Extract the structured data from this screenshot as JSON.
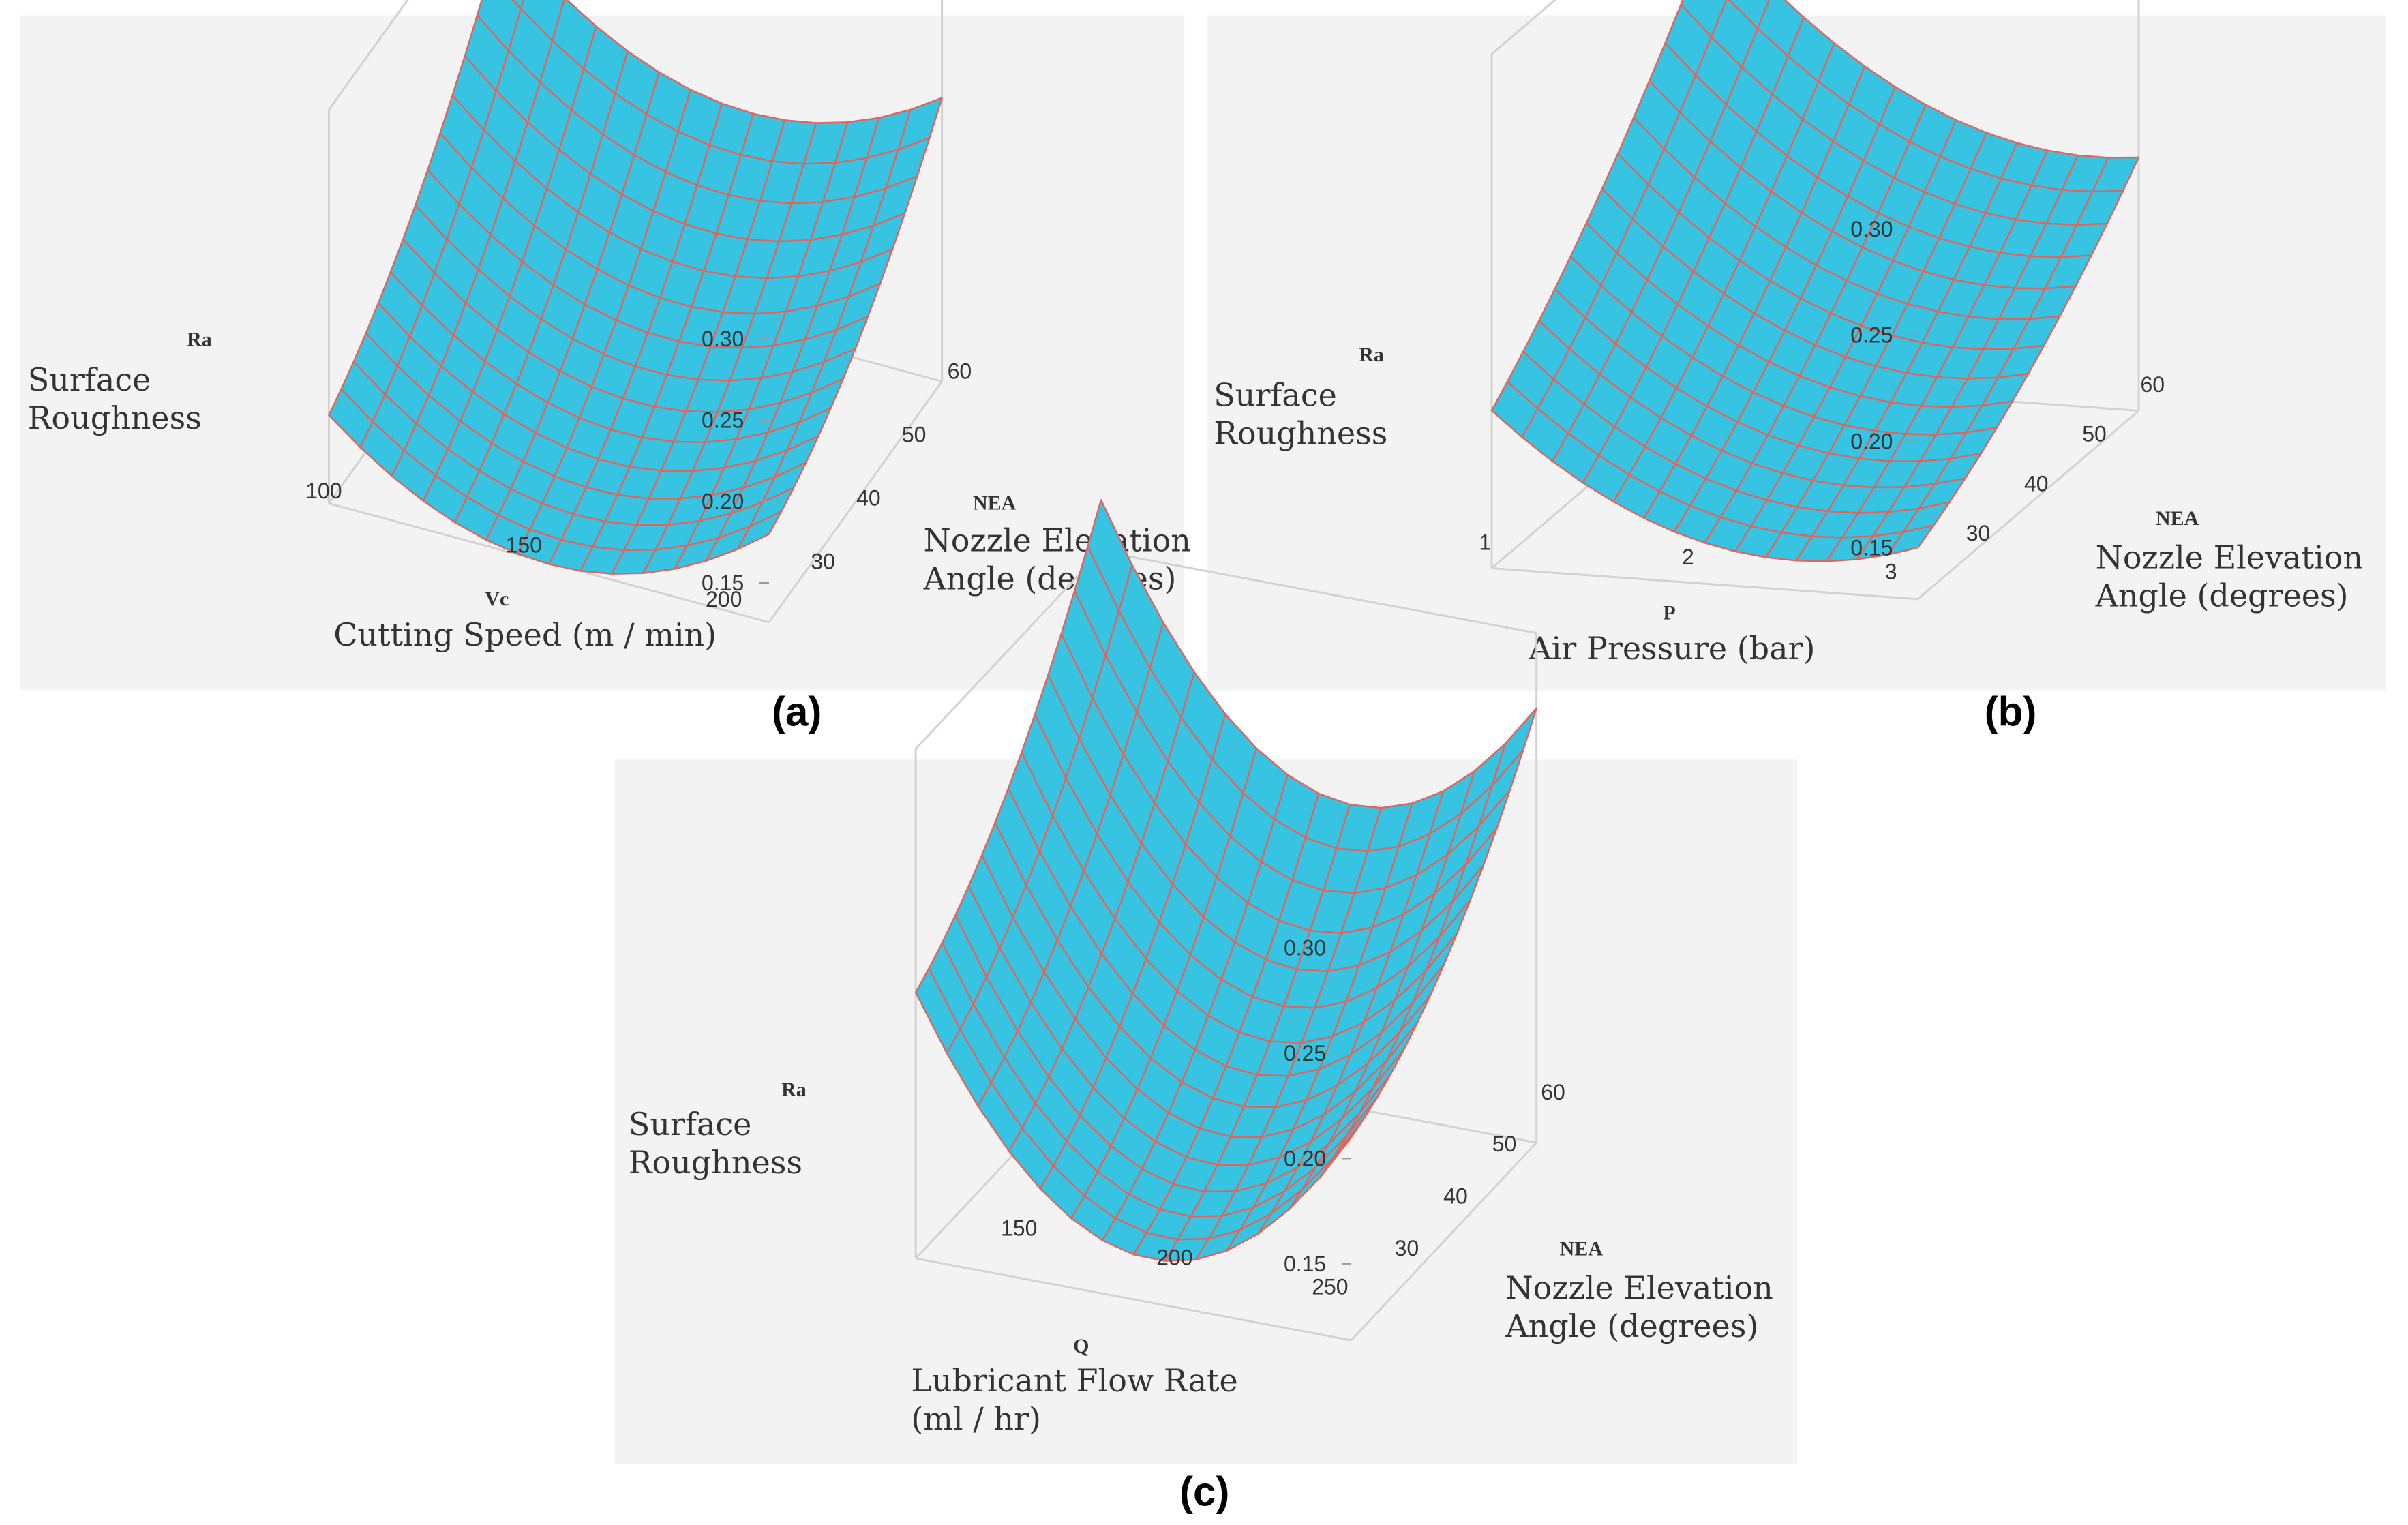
{
  "figure": {
    "panel_background": "#f3f3f3",
    "surface_color": "#36c4e2",
    "mesh_color": "#e2635a",
    "box_color": "#d2d2d2"
  },
  "chart_data": [
    {
      "type": "surface",
      "caption": "(a)",
      "x_symbol": "Vc",
      "x_title": [
        "Cutting Speed (m / min)"
      ],
      "x_ticks": [
        100,
        150,
        200
      ],
      "x_range": [
        100,
        210
      ],
      "y_symbol": "NEA",
      "y_title": [
        "Nozzle Elevation",
        "Angle (degrees)"
      ],
      "y_ticks": [
        30,
        40,
        50,
        60
      ],
      "y_range": [
        25,
        63
      ],
      "z_symbol": "Ra",
      "z_title": [
        "Surface",
        "Roughness"
      ],
      "z_ticks": [
        "0.15",
        "0.20",
        "0.25",
        "0.30"
      ],
      "z_range": [
        0.15,
        0.3
      ],
      "surface_corners": {
        "x_min_y_min": 0.18,
        "x_max_y_min": 0.18,
        "x_min_y_max": 0.33,
        "x_max_y_max": 0.3
      },
      "curvature_x": 0.055,
      "curvature_y": 0.02,
      "grid": true
    },
    {
      "type": "surface",
      "caption": "(b)",
      "x_symbol": "P",
      "x_title": [
        "Air Pressure (bar)"
      ],
      "x_ticks": [
        1,
        2,
        3
      ],
      "x_range": [
        1,
        3.1
      ],
      "y_symbol": "NEA",
      "y_title": [
        "Nozzle Elevation",
        "Angle (degrees)"
      ],
      "y_ticks": [
        30,
        40,
        50,
        60
      ],
      "y_range": [
        25,
        63
      ],
      "z_symbol": "Ra",
      "z_title": [
        "Surface",
        "Roughness"
      ],
      "z_ticks": [
        "0.15",
        "0.20",
        "0.25",
        "0.30"
      ],
      "z_range": [
        0.15,
        0.3
      ],
      "surface_corners": {
        "x_min_y_min": 0.2,
        "x_max_y_min": 0.15,
        "x_min_y_max": 0.34,
        "x_max_y_max": 0.245
      },
      "curvature_x": 0.03,
      "curvature_y": 0.01,
      "grid": true
    },
    {
      "type": "surface",
      "caption": "(c)",
      "x_symbol": "Q",
      "x_title": [
        "Lubricant Flow Rate",
        "(ml / hr)"
      ],
      "x_ticks": [
        150,
        200,
        250
      ],
      "x_range": [
        115,
        255
      ],
      "y_symbol": "NEA",
      "y_title": [
        "Nozzle Elevation",
        "Angle (degrees)"
      ],
      "y_ticks": [
        30,
        40,
        50,
        60
      ],
      "y_range": [
        25,
        63
      ],
      "z_symbol": "Ra",
      "z_title": [
        "Surface",
        "Roughness"
      ],
      "z_ticks": [
        "0.15",
        "0.20",
        "0.25",
        "0.30"
      ],
      "z_range": [
        0.15,
        0.3
      ],
      "surface_corners": {
        "x_min_y_min": 0.24,
        "x_max_y_min": 0.21,
        "x_min_y_max": 0.38,
        "x_max_y_max": 0.32
      },
      "curvature_x": 0.09,
      "curvature_y": 0.02,
      "grid": true
    }
  ]
}
